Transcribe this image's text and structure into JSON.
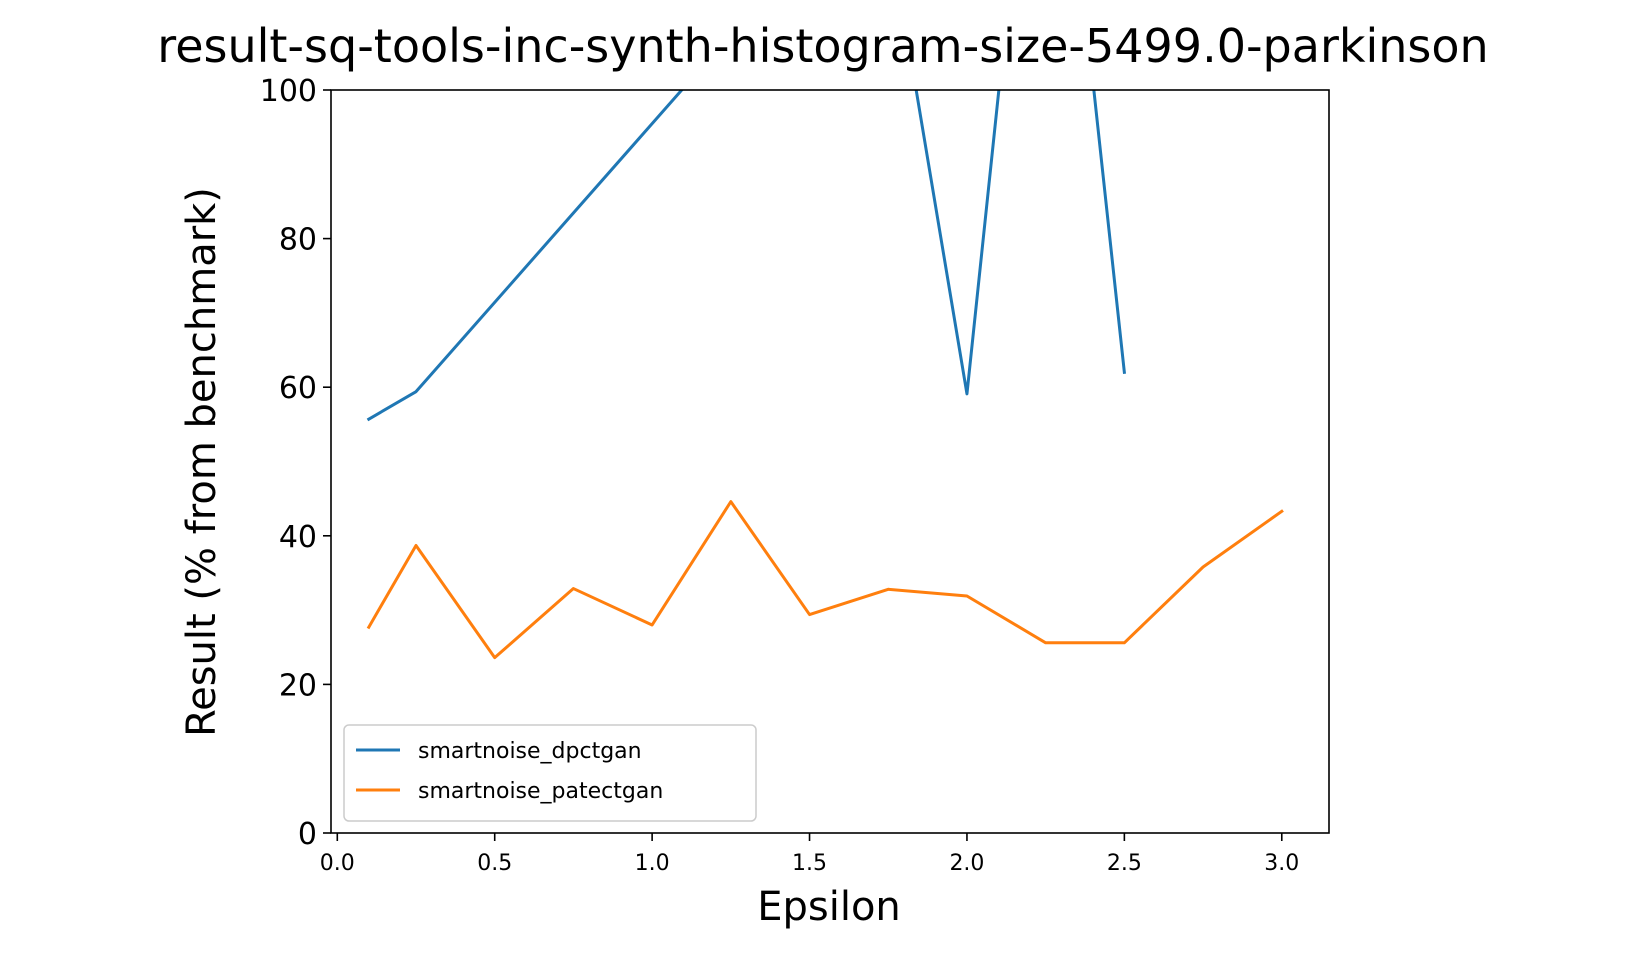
{
  "chart_data": {
    "type": "line",
    "title": "result-sq-tools-inc-synth-histogram-size-5499.0-parkinson",
    "xlabel": "Epsilon",
    "ylabel": "Result (% from benchmark)",
    "xlim": [
      -0.02,
      3.15
    ],
    "ylim": [
      0,
      100
    ],
    "xticks": [
      0.0,
      0.5,
      1.0,
      1.5,
      2.0,
      2.5,
      3.0
    ],
    "xtick_labels": [
      "0.0",
      "0.5",
      "1.0",
      "1.5",
      "2.0",
      "2.5",
      "3.0"
    ],
    "yticks": [
      0,
      20,
      40,
      60,
      80,
      100
    ],
    "ytick_labels": [
      "0",
      "20",
      "40",
      "60",
      "80",
      "100"
    ],
    "grid": false,
    "legend_position": "lower-left",
    "series": [
      {
        "name": "smartnoise_dpctgan",
        "color": "#1f77b4",
        "x": [
          0.1,
          0.25,
          1.25,
          1.75,
          2.0,
          2.25,
          2.5
        ],
        "y": [
          55.7,
          59.4,
          107.5,
          122.5,
          59.1,
          160.0,
          62.0
        ]
      },
      {
        "name": "smartnoise_patectgan",
        "color": "#ff7f0e",
        "x": [
          0.1,
          0.25,
          0.5,
          0.75,
          1.0,
          1.25,
          1.5,
          1.75,
          2.0,
          2.25,
          2.5,
          2.75,
          3.0
        ],
        "y": [
          27.7,
          38.7,
          23.6,
          32.9,
          28.0,
          44.6,
          29.4,
          32.8,
          31.9,
          25.6,
          25.6,
          35.8,
          43.3
        ]
      }
    ]
  }
}
